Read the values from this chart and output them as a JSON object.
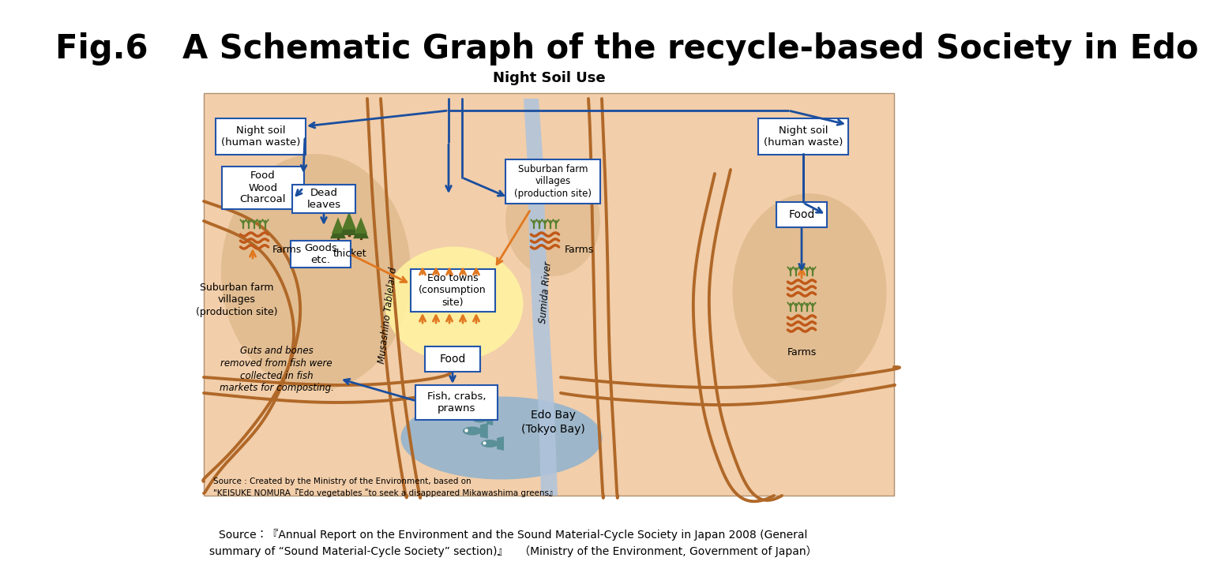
{
  "title": "Fig.6   A Schematic Graph of the recycle-based Society in Edo",
  "subtitle": "Night Soil Use",
  "source_inside_line1": "Source : Created by the Ministry of the Environment, based on",
  "source_inside_line2": "\"KEISUKE NOMURA『Edo vegetables ʺto seek a disappeared Mikawashima greens』",
  "source_bottom_line1": "Source：『Annual Report on the Environment and the Sound Material-Cycle Society in Japan 2008 (General",
  "source_bottom_line2": "summary of “Sound Material-Cycle Society” section)』　（Ministry of the Environment, Government of Japan）",
  "panel_bg": "#F2CEAA",
  "left_oval_color": "#DDB88A",
  "right_oval_color": "#DDB88A",
  "river_color": "#B0C4DC",
  "bay_color": "#9AB0CC",
  "box_facecolor": "#FFFFFF",
  "box_edgecolor": "#2255AA",
  "arrow_blue": "#1A4E9E",
  "arrow_orange": "#E07820",
  "terrain_color": "#B06828",
  "yellow_glow": "#FFF2A0",
  "green_dark": "#4A6828",
  "green_light": "#6A9040"
}
